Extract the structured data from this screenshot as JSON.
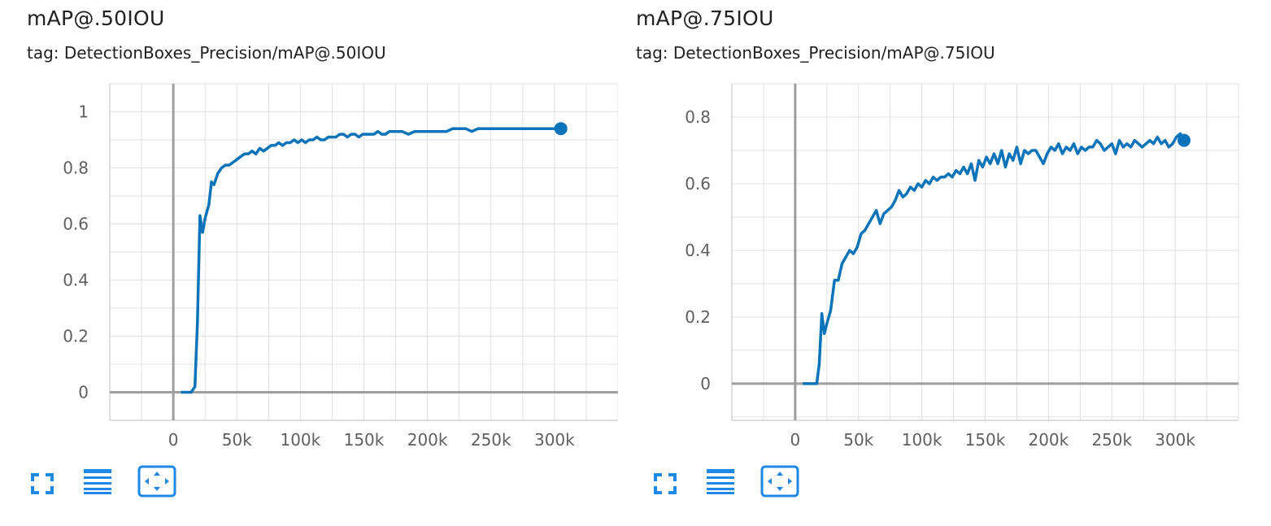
{
  "cards": [
    {
      "title": "mAP@.50IOU",
      "tag": "tag: DetectionBoxes_Precision/mAP@.50IOU"
    },
    {
      "title": "mAP@.75IOU",
      "tag": "tag: DetectionBoxes_Precision/mAP@.75IOU"
    }
  ],
  "toolbar_icons": [
    "fullscreen-icon",
    "toggle-log-scale-icon",
    "fit-domain-icon"
  ],
  "colors": {
    "line": "#0b73b9",
    "grid": "#e0e0e0",
    "axis": "#9e9e9e",
    "icon": "#1e88e5"
  },
  "chart_data": [
    {
      "type": "line",
      "title": "mAP@.50IOU",
      "xlabel": "",
      "ylabel": "",
      "xlim": [
        -50000,
        350000
      ],
      "ylim": [
        -0.1,
        1.1
      ],
      "xticks": [
        0,
        50000,
        100000,
        150000,
        200000,
        250000,
        300000
      ],
      "xtick_labels": [
        "0",
        "50k",
        "100k",
        "150k",
        "200k",
        "250k",
        "300k"
      ],
      "yticks": [
        0,
        0.2,
        0.4,
        0.6,
        0.8,
        1
      ],
      "ytick_labels": [
        "0",
        "0.2",
        "0.4",
        "0.6",
        "0.8",
        "1"
      ],
      "grid": true,
      "series": [
        {
          "x": [
            6000,
            10000,
            14000,
            17000,
            19000,
            21000,
            23000,
            25000,
            28000,
            30000,
            32000,
            35000,
            38000,
            41000,
            44000,
            47000,
            50000,
            53000,
            56000,
            59000,
            62000,
            65000,
            68000,
            71000,
            74000,
            77000,
            80000,
            83000,
            86000,
            89000,
            92000,
            95000,
            98000,
            101000,
            104000,
            107000,
            110000,
            113000,
            116000,
            119000,
            122000,
            125000,
            128000,
            131000,
            134000,
            137000,
            140000,
            143000,
            146000,
            149000,
            152000,
            155000,
            158000,
            161000,
            164000,
            167000,
            170000,
            175000,
            180000,
            185000,
            190000,
            195000,
            200000,
            205000,
            210000,
            215000,
            220000,
            225000,
            230000,
            235000,
            240000,
            245000,
            250000,
            255000,
            260000,
            265000,
            270000,
            275000,
            280000,
            285000,
            290000,
            295000,
            300000,
            305000
          ],
          "y": [
            0.0,
            0.0,
            0.0,
            0.02,
            0.25,
            0.63,
            0.57,
            0.62,
            0.67,
            0.75,
            0.74,
            0.78,
            0.8,
            0.81,
            0.81,
            0.82,
            0.83,
            0.84,
            0.85,
            0.85,
            0.86,
            0.85,
            0.87,
            0.86,
            0.87,
            0.88,
            0.88,
            0.89,
            0.88,
            0.89,
            0.89,
            0.9,
            0.89,
            0.9,
            0.89,
            0.9,
            0.9,
            0.91,
            0.9,
            0.9,
            0.91,
            0.91,
            0.91,
            0.92,
            0.92,
            0.91,
            0.92,
            0.92,
            0.91,
            0.92,
            0.92,
            0.92,
            0.92,
            0.93,
            0.92,
            0.92,
            0.93,
            0.93,
            0.93,
            0.92,
            0.93,
            0.93,
            0.93,
            0.93,
            0.93,
            0.93,
            0.94,
            0.94,
            0.94,
            0.93,
            0.94,
            0.94,
            0.94,
            0.94,
            0.94,
            0.94,
            0.94,
            0.94,
            0.94,
            0.94,
            0.94,
            0.94,
            0.94,
            0.94
          ]
        }
      ]
    },
    {
      "type": "line",
      "title": "mAP@.75IOU",
      "xlabel": "",
      "ylabel": "",
      "xlim": [
        -50000,
        350000
      ],
      "ylim": [
        -0.11,
        0.9
      ],
      "xticks": [
        0,
        50000,
        100000,
        150000,
        200000,
        250000,
        300000
      ],
      "xtick_labels": [
        "0",
        "50k",
        "100k",
        "150k",
        "200k",
        "250k",
        "300k"
      ],
      "yticks": [
        0,
        0.2,
        0.4,
        0.6,
        0.8
      ],
      "ytick_labels": [
        "0",
        "0.2",
        "0.4",
        "0.6",
        "0.8"
      ],
      "grid": true,
      "series": [
        {
          "x": [
            6000,
            10000,
            14000,
            17000,
            19000,
            21000,
            23000,
            25000,
            28000,
            31000,
            34000,
            37000,
            40000,
            43000,
            46000,
            49000,
            52000,
            55000,
            58000,
            61000,
            64000,
            67000,
            70000,
            73000,
            76000,
            79000,
            82000,
            85000,
            88000,
            91000,
            94000,
            97000,
            100000,
            103000,
            106000,
            109000,
            112000,
            115000,
            118000,
            121000,
            124000,
            127000,
            130000,
            133000,
            136000,
            139000,
            142000,
            145000,
            148000,
            151000,
            154000,
            157000,
            160000,
            163000,
            166000,
            169000,
            172000,
            175000,
            178000,
            181000,
            184000,
            187000,
            190000,
            193000,
            196000,
            199000,
            202000,
            205000,
            208000,
            211000,
            214000,
            217000,
            220000,
            223000,
            226000,
            229000,
            232000,
            235000,
            238000,
            241000,
            244000,
            247000,
            250000,
            253000,
            256000,
            259000,
            262000,
            265000,
            268000,
            271000,
            274000,
            277000,
            280000,
            283000,
            286000,
            289000,
            292000,
            295000,
            298000,
            301000,
            304000,
            307000
          ],
          "y": [
            0.0,
            0.0,
            0.0,
            0.0,
            0.06,
            0.21,
            0.15,
            0.18,
            0.22,
            0.31,
            0.31,
            0.36,
            0.38,
            0.4,
            0.39,
            0.41,
            0.45,
            0.46,
            0.48,
            0.5,
            0.52,
            0.48,
            0.51,
            0.52,
            0.53,
            0.55,
            0.58,
            0.56,
            0.57,
            0.59,
            0.58,
            0.6,
            0.59,
            0.61,
            0.6,
            0.62,
            0.61,
            0.62,
            0.62,
            0.63,
            0.62,
            0.64,
            0.63,
            0.65,
            0.63,
            0.66,
            0.61,
            0.67,
            0.65,
            0.68,
            0.66,
            0.69,
            0.66,
            0.7,
            0.65,
            0.69,
            0.67,
            0.71,
            0.66,
            0.7,
            0.69,
            0.7,
            0.7,
            0.68,
            0.66,
            0.69,
            0.71,
            0.7,
            0.72,
            0.69,
            0.71,
            0.7,
            0.72,
            0.69,
            0.71,
            0.7,
            0.71,
            0.71,
            0.73,
            0.72,
            0.7,
            0.71,
            0.72,
            0.69,
            0.73,
            0.71,
            0.72,
            0.71,
            0.73,
            0.72,
            0.71,
            0.72,
            0.73,
            0.72,
            0.74,
            0.72,
            0.73,
            0.71,
            0.72,
            0.74,
            0.75,
            0.73
          ]
        }
      ]
    }
  ]
}
